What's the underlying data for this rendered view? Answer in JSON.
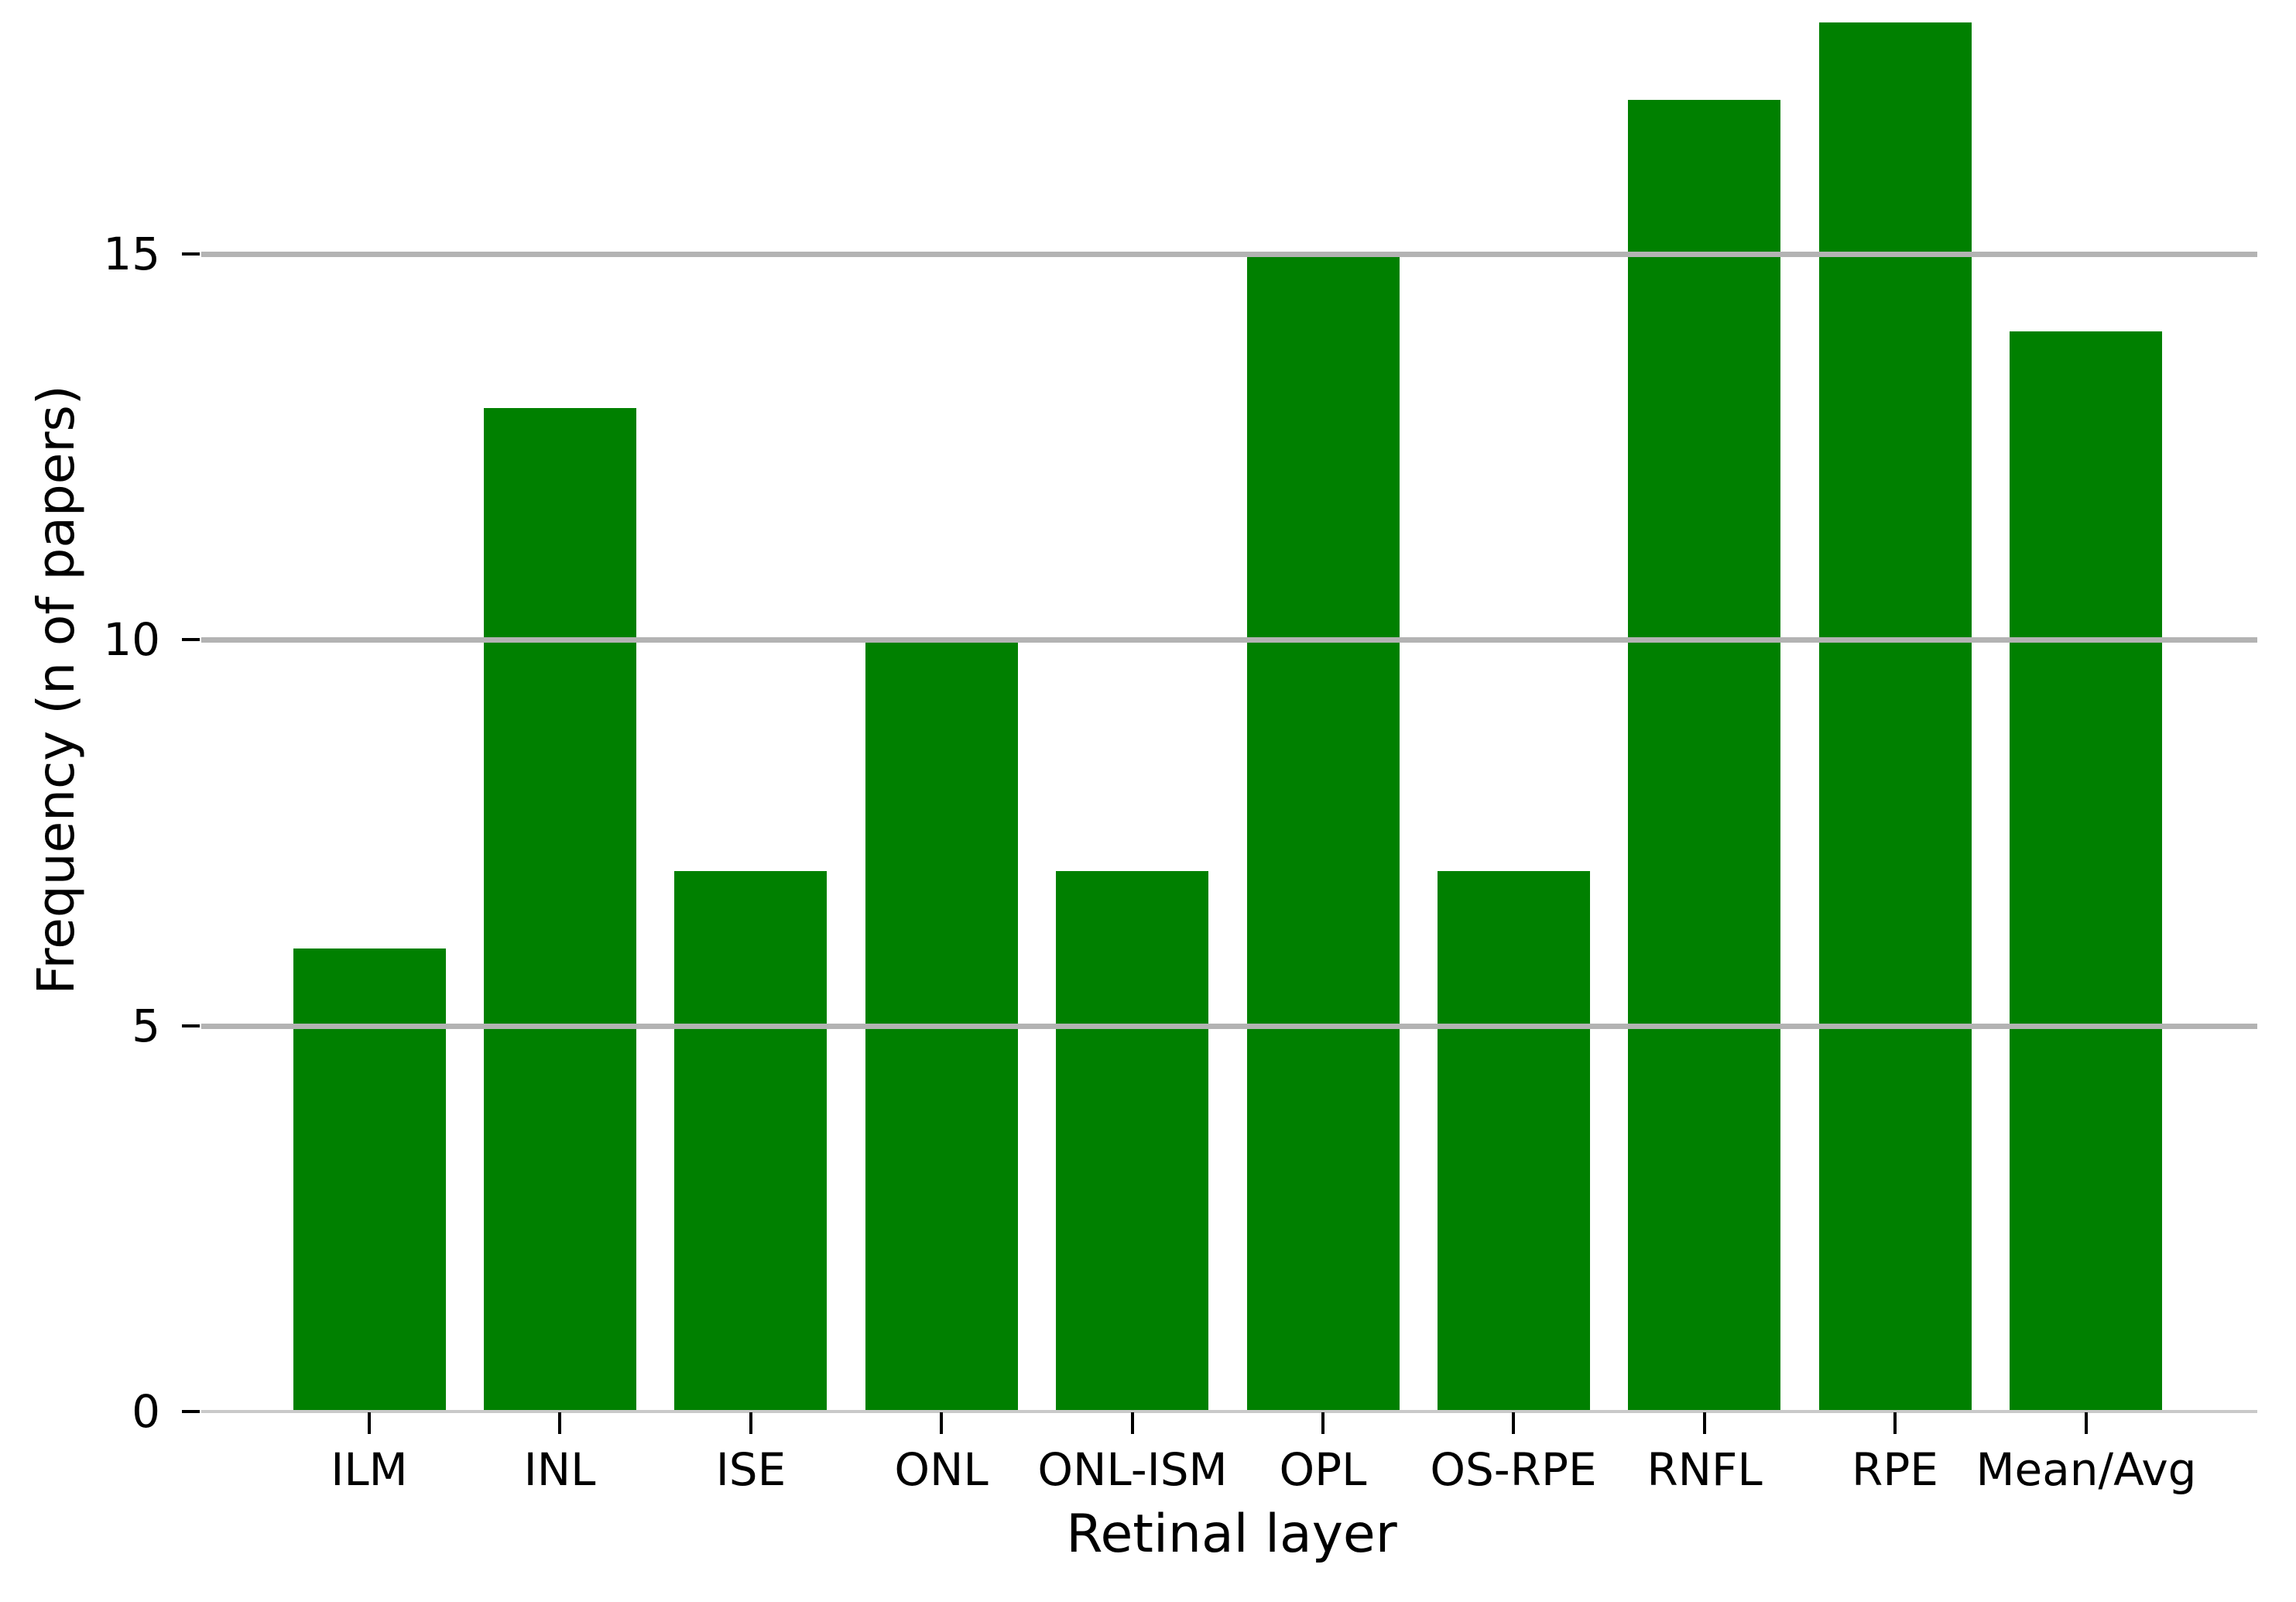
{
  "figure": {
    "background": "#ffffff"
  },
  "chart_data": {
    "type": "bar",
    "categories": [
      "ILM",
      "INL",
      "ISE",
      "ONL",
      "ONL-ISM",
      "OPL",
      "OS-RPE",
      "RNFL",
      "RPE",
      "Mean/Avg"
    ],
    "values": [
      6,
      13,
      7,
      10,
      7,
      15,
      7,
      17,
      18,
      14
    ],
    "title": "",
    "xlabel": "Retinal layer",
    "ylabel": "Frequency (n of papers)",
    "ylim": [
      0,
      18.1
    ],
    "yticks": [
      0,
      5,
      10,
      15
    ],
    "gridline_yticks": [
      5,
      10,
      15
    ],
    "grid": "horizontal",
    "legend": "none",
    "bar_color": "#008000",
    "gridline_color": "#b3b3b3",
    "baseline_color": "#c9c9c9",
    "tick_color": "#000000",
    "text_color": "#000000"
  }
}
